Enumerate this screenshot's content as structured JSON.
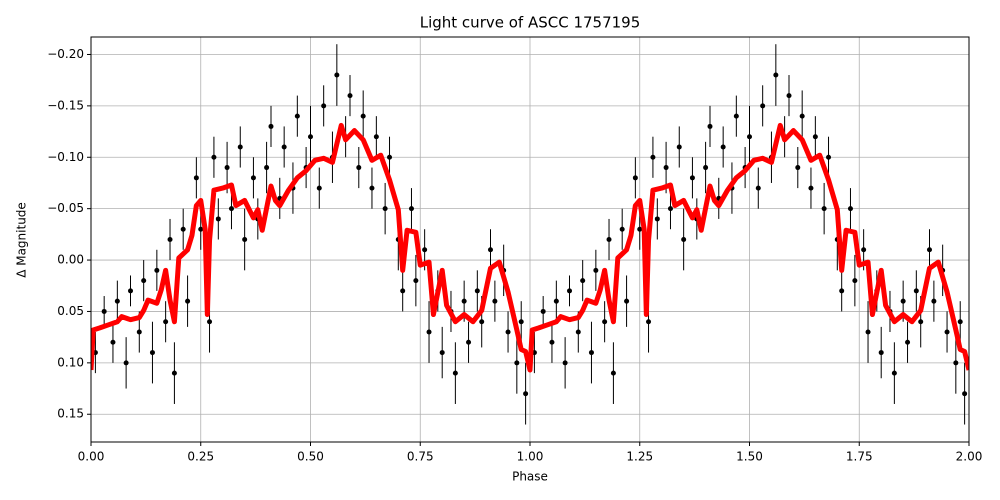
{
  "chart_data": {
    "type": "scatter",
    "title": "Light curve of ASCC 1757195",
    "xlabel": "Phase",
    "ylabel": "Δ Magnitude",
    "grid": true,
    "xlim": [
      0,
      2
    ],
    "ylim": [
      0.177,
      -0.217
    ],
    "xticks": [
      {
        "value": 0,
        "label": "0.00"
      },
      {
        "value": 0.25,
        "label": "0.25"
      },
      {
        "value": 0.5,
        "label": "0.50"
      },
      {
        "value": 0.75,
        "label": "0.75"
      },
      {
        "value": 1,
        "label": "1.00"
      },
      {
        "value": 1.25,
        "label": "1.25"
      },
      {
        "value": 1.5,
        "label": "1.50"
      },
      {
        "value": 1.75,
        "label": "1.75"
      },
      {
        "value": 2,
        "label": "2.00"
      }
    ],
    "yticks": [
      {
        "value": -0.2,
        "label": "−0.20"
      },
      {
        "value": -0.15,
        "label": "−0.15"
      },
      {
        "value": -0.1,
        "label": "−0.10"
      },
      {
        "value": -0.05,
        "label": "−0.05"
      },
      {
        "value": 0,
        "label": "0.00"
      },
      {
        "value": 0.05,
        "label": "0.05"
      },
      {
        "value": 0.1,
        "label": "0.10"
      },
      {
        "value": 0.15,
        "label": "0.15"
      }
    ],
    "series": [
      {
        "type": "errorbar",
        "color": "#000000",
        "x": [
          0.01,
          0.03,
          0.05,
          0.06,
          0.08,
          0.09,
          0.11,
          0.12,
          0.14,
          0.15,
          0.17,
          0.18,
          0.19,
          0.21,
          0.22,
          0.24,
          0.25,
          0.27,
          0.28,
          0.29,
          0.31,
          0.32,
          0.34,
          0.35,
          0.37,
          0.38,
          0.4,
          0.41,
          0.43,
          0.44,
          0.46,
          0.47,
          0.49,
          0.5,
          0.52,
          0.53,
          0.55,
          0.56,
          0.58,
          0.59,
          0.61,
          0.62,
          0.64,
          0.65,
          0.67,
          0.68,
          0.7,
          0.71,
          0.73,
          0.74,
          0.76,
          0.77,
          0.79,
          0.8,
          0.82,
          0.83,
          0.85,
          0.86,
          0.88,
          0.89,
          0.91,
          0.92,
          0.94,
          0.95,
          0.97,
          0.98,
          0.99,
          1.01,
          1.03,
          1.05,
          1.06,
          1.08,
          1.09,
          1.11,
          1.12,
          1.14,
          1.15,
          1.17,
          1.18,
          1.19,
          1.21,
          1.22,
          1.24,
          1.25,
          1.27,
          1.28,
          1.29,
          1.31,
          1.32,
          1.34,
          1.35,
          1.37,
          1.38,
          1.4,
          1.41,
          1.43,
          1.44,
          1.46,
          1.47,
          1.49,
          1.5,
          1.52,
          1.53,
          1.55,
          1.56,
          1.58,
          1.59,
          1.61,
          1.62,
          1.64,
          1.65,
          1.67,
          1.68,
          1.7,
          1.71,
          1.73,
          1.74,
          1.76,
          1.77,
          1.79,
          1.8,
          1.82,
          1.83,
          1.85,
          1.86,
          1.88,
          1.89,
          1.91,
          1.92,
          1.94,
          1.95,
          1.97,
          1.98,
          1.99
        ],
        "values": [
          0.09,
          0.05,
          0.08,
          0.04,
          0.1,
          0.03,
          0.07,
          0.02,
          0.09,
          0.01,
          0.06,
          -0.02,
          0.11,
          -0.03,
          0.04,
          -0.08,
          -0.03,
          0.06,
          -0.1,
          -0.04,
          -0.09,
          -0.05,
          -0.11,
          -0.02,
          -0.08,
          -0.04,
          -0.09,
          -0.13,
          -0.06,
          -0.11,
          -0.07,
          -0.14,
          -0.09,
          -0.12,
          -0.07,
          -0.15,
          -0.1,
          -0.18,
          -0.12,
          -0.16,
          -0.09,
          -0.14,
          -0.07,
          -0.12,
          -0.05,
          -0.1,
          -0.02,
          0.03,
          -0.05,
          0.02,
          -0.01,
          0.07,
          0.03,
          0.09,
          0.05,
          0.11,
          0.04,
          0.08,
          0.03,
          0.06,
          -0.01,
          0.04,
          0.01,
          0.07,
          0.1,
          0.06,
          0.13,
          0.09,
          0.05,
          0.08,
          0.04,
          0.1,
          0.03,
          0.07,
          0.02,
          0.09,
          0.01,
          0.06,
          -0.02,
          0.11,
          -0.03,
          0.04,
          -0.08,
          -0.03,
          0.06,
          -0.1,
          -0.04,
          -0.09,
          -0.05,
          -0.11,
          -0.02,
          -0.08,
          -0.04,
          -0.09,
          -0.13,
          -0.06,
          -0.11,
          -0.07,
          -0.14,
          -0.09,
          -0.12,
          -0.07,
          -0.15,
          -0.1,
          -0.18,
          -0.12,
          -0.16,
          -0.09,
          -0.14,
          -0.07,
          -0.12,
          -0.05,
          -0.1,
          -0.02,
          0.03,
          -0.05,
          0.02,
          -0.01,
          0.07,
          0.03,
          0.09,
          0.05,
          0.11,
          0.04,
          0.08,
          0.03,
          0.06,
          -0.01,
          0.04,
          0.01,
          0.07,
          0.1,
          0.06,
          0.13
        ],
        "errors": [
          0.02,
          0.015,
          0.02,
          0.02,
          0.025,
          0.015,
          0.02,
          0.02,
          0.03,
          0.02,
          0.02,
          0.02,
          0.03,
          0.02,
          0.025,
          0.02,
          0.02,
          0.03,
          0.02,
          0.02,
          0.025,
          0.02,
          0.02,
          0.03,
          0.02,
          0.02,
          0.025,
          0.02,
          0.02,
          0.02,
          0.025,
          0.02,
          0.02,
          0.03,
          0.02,
          0.02,
          0.025,
          0.03,
          0.02,
          0.02,
          0.02,
          0.025,
          0.02,
          0.02,
          0.025,
          0.02,
          0.03,
          0.02,
          0.02,
          0.025,
          0.02,
          0.03,
          0.02,
          0.025,
          0.02,
          0.03,
          0.02,
          0.02,
          0.02,
          0.025,
          0.02,
          0.02,
          0.025,
          0.02,
          0.03,
          0.02,
          0.03,
          0.02,
          0.015,
          0.02,
          0.02,
          0.025,
          0.015,
          0.02,
          0.02,
          0.03,
          0.02,
          0.02,
          0.02,
          0.03,
          0.02,
          0.025,
          0.02,
          0.02,
          0.03,
          0.02,
          0.02,
          0.025,
          0.02,
          0.02,
          0.03,
          0.02,
          0.02,
          0.025,
          0.02,
          0.02,
          0.02,
          0.025,
          0.02,
          0.02,
          0.03,
          0.02,
          0.02,
          0.025,
          0.03,
          0.02,
          0.02,
          0.02,
          0.025,
          0.02,
          0.02,
          0.025,
          0.02,
          0.03,
          0.02,
          0.02,
          0.025,
          0.02,
          0.03,
          0.02,
          0.025,
          0.02,
          0.03,
          0.02,
          0.02,
          0.02,
          0.025,
          0.02,
          0.02,
          0.025,
          0.02,
          0.03,
          0.02,
          0.03
        ]
      },
      {
        "type": "line",
        "color": "#ff0000",
        "x": [
          0.0,
          0.005,
          0.02,
          0.04,
          0.06,
          0.07,
          0.09,
          0.11,
          0.12,
          0.13,
          0.15,
          0.16,
          0.17,
          0.18,
          0.19,
          0.2,
          0.22,
          0.23,
          0.24,
          0.25,
          0.26,
          0.265,
          0.27,
          0.28,
          0.3,
          0.32,
          0.33,
          0.35,
          0.37,
          0.38,
          0.39,
          0.41,
          0.42,
          0.43,
          0.45,
          0.47,
          0.49,
          0.51,
          0.53,
          0.55,
          0.57,
          0.58,
          0.6,
          0.62,
          0.64,
          0.66,
          0.68,
          0.7,
          0.71,
          0.72,
          0.74,
          0.75,
          0.77,
          0.78,
          0.8,
          0.81,
          0.83,
          0.85,
          0.87,
          0.89,
          0.91,
          0.93,
          0.95,
          0.97,
          0.98,
          0.99,
          1.0,
          1.005,
          1.02,
          1.04,
          1.06,
          1.07,
          1.09,
          1.11,
          1.12,
          1.13,
          1.15,
          1.16,
          1.17,
          1.18,
          1.19,
          1.2,
          1.22,
          1.23,
          1.24,
          1.25,
          1.26,
          1.265,
          1.27,
          1.28,
          1.3,
          1.32,
          1.33,
          1.35,
          1.37,
          1.38,
          1.39,
          1.41,
          1.42,
          1.43,
          1.45,
          1.47,
          1.49,
          1.51,
          1.53,
          1.55,
          1.57,
          1.58,
          1.6,
          1.62,
          1.64,
          1.66,
          1.68,
          1.7,
          1.71,
          1.72,
          1.74,
          1.75,
          1.77,
          1.78,
          1.8,
          1.81,
          1.83,
          1.85,
          1.87,
          1.89,
          1.91,
          1.93,
          1.95,
          1.97,
          1.98,
          1.99,
          2.0
        ],
        "values": [
          0.107,
          0.068,
          0.066,
          0.063,
          0.06,
          0.055,
          0.058,
          0.056,
          0.049,
          0.039,
          0.042,
          0.029,
          0.01,
          0.039,
          0.06,
          -0.002,
          -0.01,
          -0.024,
          -0.053,
          -0.058,
          -0.03,
          0.053,
          -0.019,
          -0.068,
          -0.07,
          -0.073,
          -0.053,
          -0.058,
          -0.041,
          -0.049,
          -0.029,
          -0.072,
          -0.058,
          -0.053,
          -0.068,
          -0.08,
          -0.087,
          -0.097,
          -0.099,
          -0.095,
          -0.131,
          -0.117,
          -0.126,
          -0.117,
          -0.097,
          -0.102,
          -0.078,
          -0.049,
          0.01,
          -0.029,
          -0.027,
          0.005,
          0.002,
          0.053,
          0.01,
          0.044,
          0.06,
          0.053,
          0.06,
          0.049,
          0.008,
          0.002,
          0.031,
          0.068,
          0.087,
          0.089,
          0.107,
          0.068,
          0.066,
          0.063,
          0.06,
          0.055,
          0.058,
          0.056,
          0.049,
          0.039,
          0.042,
          0.029,
          0.01,
          0.039,
          0.06,
          -0.002,
          -0.01,
          -0.024,
          -0.053,
          -0.058,
          -0.03,
          0.053,
          -0.019,
          -0.068,
          -0.07,
          -0.073,
          -0.053,
          -0.058,
          -0.041,
          -0.049,
          -0.029,
          -0.072,
          -0.058,
          -0.053,
          -0.068,
          -0.08,
          -0.087,
          -0.097,
          -0.099,
          -0.095,
          -0.131,
          -0.117,
          -0.126,
          -0.117,
          -0.097,
          -0.102,
          -0.078,
          -0.049,
          0.01,
          -0.029,
          -0.027,
          0.005,
          0.002,
          0.053,
          0.01,
          0.044,
          0.06,
          0.053,
          0.06,
          0.049,
          0.008,
          0.002,
          0.031,
          0.068,
          0.087,
          0.089,
          0.107
        ]
      }
    ]
  }
}
